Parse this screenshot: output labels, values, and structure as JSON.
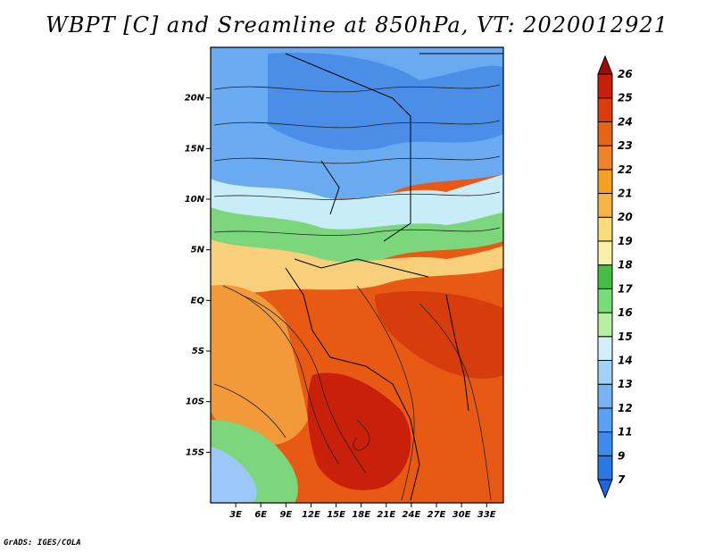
{
  "title": "WBPT [C] and Sreamline at 850hPa, VT: 2020012921",
  "credit": "GrADS: IGES/COLA",
  "map": {
    "lon_range": [
      0,
      35
    ],
    "lat_range": [
      -20,
      25
    ],
    "lon_ticks": [
      "3E",
      "6E",
      "9E",
      "12E",
      "15E",
      "18E",
      "21E",
      "24E",
      "27E",
      "30E",
      "33E"
    ],
    "lat_ticks": [
      "20N",
      "15N",
      "10N",
      "5N",
      "EQ",
      "5S",
      "10S",
      "15S"
    ]
  },
  "colorbar": {
    "labels": [
      "7",
      "9",
      "11",
      "12",
      "13",
      "14",
      "15",
      "16",
      "17",
      "18",
      "19",
      "20",
      "21",
      "22",
      "23",
      "24",
      "25",
      "26"
    ],
    "colors": [
      "#1e64dc",
      "#2878e6",
      "#3c8cf0",
      "#5aa0f5",
      "#78b4f5",
      "#a0d2fa",
      "#d2f0fa",
      "#b4f0a0",
      "#78dc78",
      "#46be46",
      "#faf0aa",
      "#fadc78",
      "#fab446",
      "#f5a020",
      "#f08228",
      "#e66414",
      "#dc3c0a",
      "#c81e0a",
      "#a00a00"
    ]
  }
}
